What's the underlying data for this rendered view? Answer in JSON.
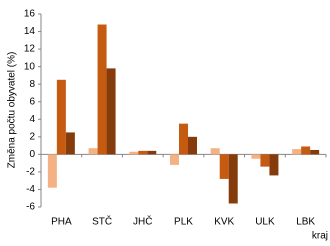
{
  "chart_data": {
    "type": "bar",
    "y_label": "Změna počtu obyvatel (%)",
    "x_label": "kraj",
    "categories": [
      "PHA",
      "STČ",
      "JHČ",
      "PLK",
      "KVK",
      "ULK",
      "LBK"
    ],
    "series": [
      {
        "color": "#f4b183",
        "values": [
          -3.8,
          0.7,
          0.3,
          -1.2,
          0.7,
          -0.5,
          0.6
        ]
      },
      {
        "color": "#c55a11",
        "values": [
          8.5,
          14.8,
          0.4,
          3.5,
          -2.8,
          -1.4,
          0.9
        ]
      },
      {
        "color": "#843c0c",
        "values": [
          2.5,
          9.8,
          0.4,
          2.0,
          -5.6,
          -2.4,
          0.5
        ]
      }
    ],
    "ylim": [
      -6,
      16
    ],
    "yticks": [
      -6,
      -4,
      -2,
      0,
      2,
      4,
      6,
      8,
      10,
      12,
      14,
      16
    ],
    "grid": false
  }
}
